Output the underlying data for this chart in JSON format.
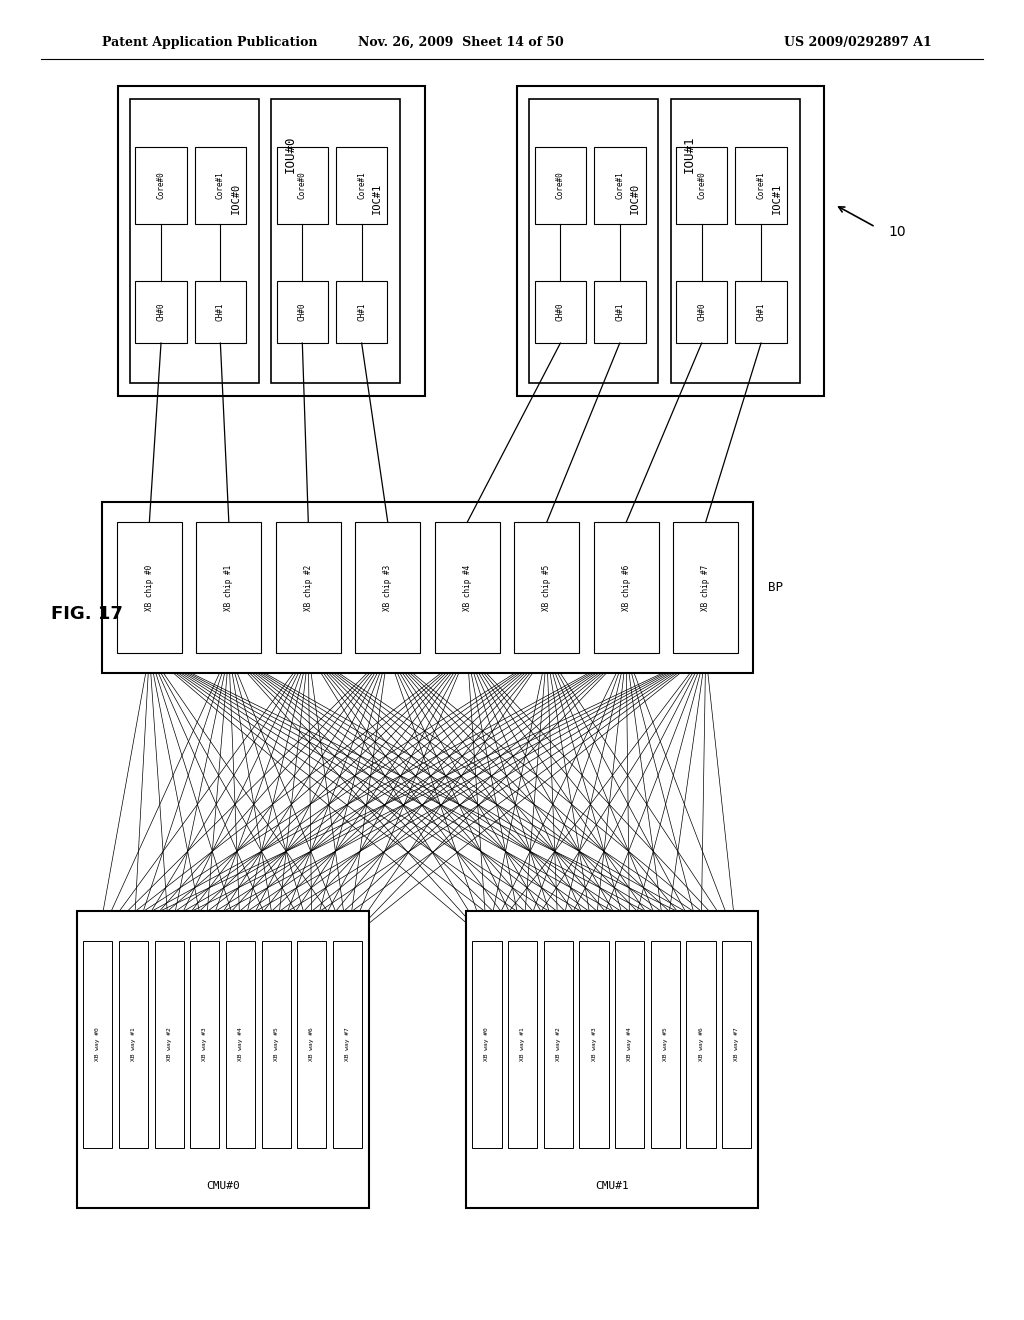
{
  "header_left": "Patent Application Publication",
  "header_mid": "Nov. 26, 2009  Sheet 14 of 50",
  "header_right": "US 2009/0292897 A1",
  "fig_label": "FIG. 17",
  "bg_color": "#ffffff",
  "line_color": "#000000",
  "text_color": "#000000",
  "xb_chips": [
    "XB chip #0",
    "XB chip #1",
    "XB chip #2",
    "XB chip #3",
    "XB chip #4",
    "XB chip #5",
    "XB chip #6",
    "XB chip #7"
  ],
  "cmu0_ways": [
    "XB way #0",
    "XB way #1",
    "XB way #2",
    "XB way #3",
    "XB way #4",
    "XB way #5",
    "XB way #6",
    "XB way #7"
  ],
  "cmu1_ways": [
    "XB way #0",
    "XB way #1",
    "XB way #2",
    "XB way #3",
    "XB way #4",
    "XB way #5",
    "XB way #6",
    "XB way #7"
  ],
  "ref_label": "10"
}
